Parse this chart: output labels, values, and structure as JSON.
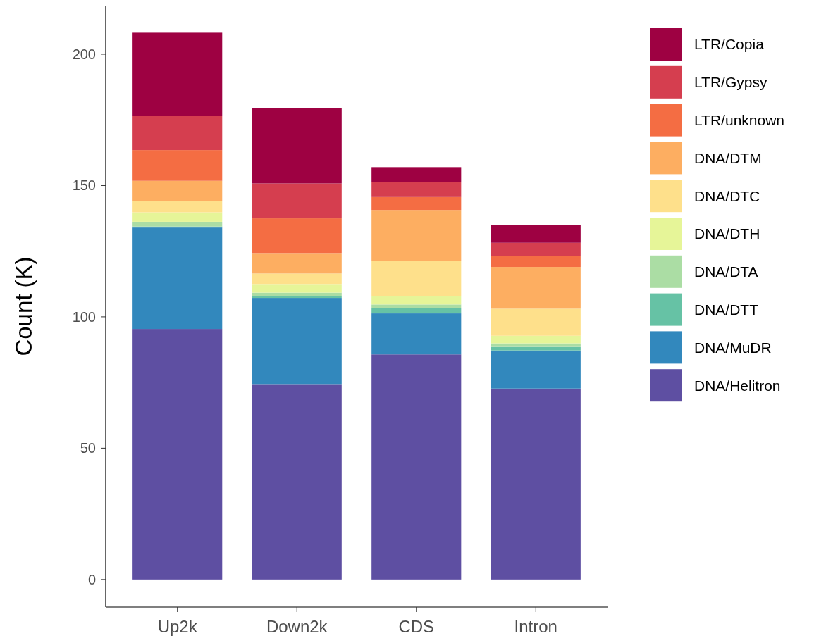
{
  "chart_data": {
    "type": "bar",
    "stacked": true,
    "ylabel": "Count (K)",
    "categories": [
      "Up2k",
      "Down2k",
      "CDS",
      "Intron"
    ],
    "ylim": [
      -10.5,
      218.5
    ],
    "yticks": [
      0,
      50,
      100,
      150,
      200
    ],
    "grid": false,
    "legend": "right",
    "series": [
      {
        "name": "DNA/Helitron",
        "color": "#5e4fa2",
        "values": [
          95.4,
          74.4,
          85.7,
          72.7
        ]
      },
      {
        "name": "DNA/MuDR",
        "color": "#3288bd",
        "values": [
          38.6,
          32.8,
          15.6,
          14.5
        ]
      },
      {
        "name": "DNA/DTT",
        "color": "#66c2a5",
        "values": [
          0.4,
          0.6,
          2.1,
          1.6
        ]
      },
      {
        "name": "DNA/DTA",
        "color": "#abdda4",
        "values": [
          1.8,
          1.4,
          1.3,
          1.1
        ]
      },
      {
        "name": "DNA/DTH",
        "color": "#e6f598",
        "values": [
          3.6,
          3.3,
          3.2,
          2.9
        ]
      },
      {
        "name": "DNA/DTC",
        "color": "#fee08b",
        "values": [
          4.2,
          4.0,
          13.4,
          10.3
        ]
      },
      {
        "name": "DNA/DTM",
        "color": "#fdae61",
        "values": [
          7.8,
          7.8,
          19.4,
          15.9
        ]
      },
      {
        "name": "LTR/unknown",
        "color": "#f46d43",
        "values": [
          11.7,
          13.2,
          4.9,
          4.2
        ]
      },
      {
        "name": "LTR/Gypsy",
        "color": "#d53e4f",
        "values": [
          12.9,
          13.3,
          5.8,
          5.0
        ]
      },
      {
        "name": "LTR/Copia",
        "color": "#9e0142",
        "values": [
          31.8,
          28.6,
          5.6,
          6.8
        ]
      }
    ]
  }
}
